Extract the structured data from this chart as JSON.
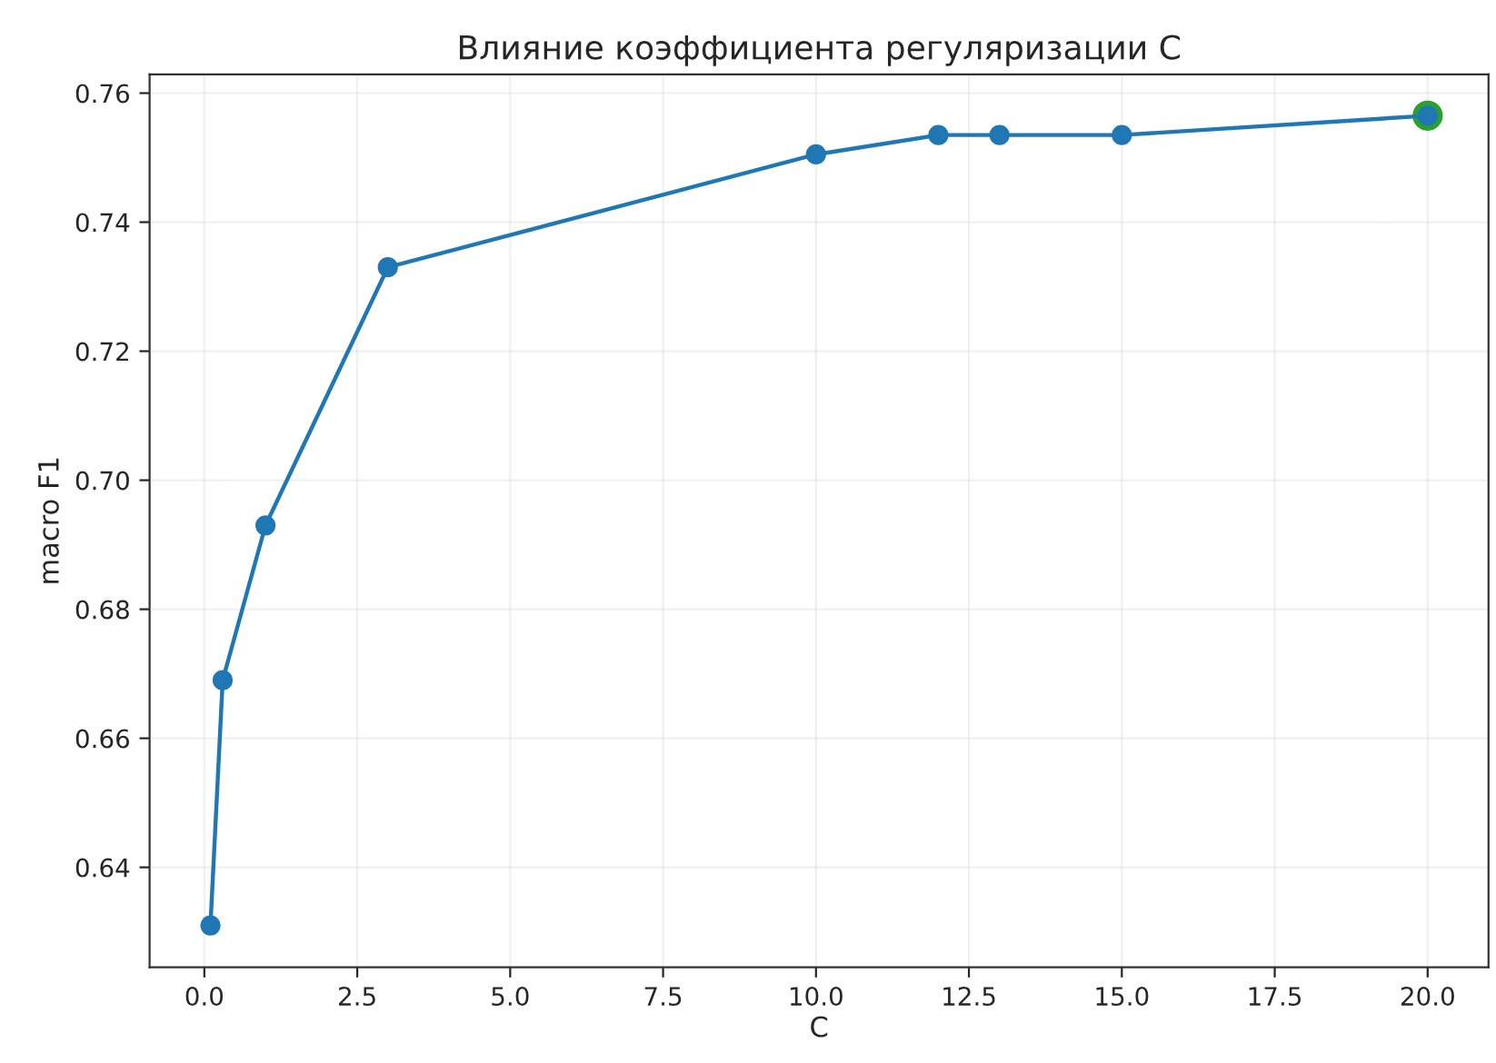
{
  "chart_data": {
    "type": "line",
    "title": "Влияние коэффициента регуляризации C",
    "xlabel": "C",
    "ylabel": "macro F1",
    "x": [
      0.1,
      0.3,
      1,
      3,
      10,
      12,
      13,
      15,
      20
    ],
    "series": [
      {
        "type": "scatter",
        "color": "#2ca02c",
        "x": [
          20
        ],
        "values": [
          0.7565
        ]
      },
      {
        "color": "#1f77b4",
        "values": [
          0.631,
          0.669,
          0.693,
          0.733,
          0.7505,
          0.7535,
          0.7535,
          0.7535,
          0.7565
        ]
      }
    ],
    "marker": "circle",
    "line_style": "solid",
    "xlim": [
      -0.895,
      20.995
    ],
    "xticks": [
      {
        "value": 0,
        "label": "0.0"
      },
      {
        "value": 2.5,
        "label": "2.5"
      },
      {
        "value": 5,
        "label": "5.0"
      },
      {
        "value": 7.5,
        "label": "7.5"
      },
      {
        "value": 10,
        "label": "10.0"
      },
      {
        "value": 12.5,
        "label": "12.5"
      },
      {
        "value": 15,
        "label": "15.0"
      },
      {
        "value": 17.5,
        "label": "17.5"
      },
      {
        "value": 20,
        "label": "20.0"
      }
    ],
    "ylim": [
      0.6245,
      0.7629
    ],
    "yticks": [
      {
        "value": 0.64,
        "label": "0.64"
      },
      {
        "value": 0.66,
        "label": "0.66"
      },
      {
        "value": 0.68,
        "label": "0.68"
      },
      {
        "value": 0.7,
        "label": "0.70"
      },
      {
        "value": 0.72,
        "label": "0.72"
      },
      {
        "value": 0.74,
        "label": "0.74"
      },
      {
        "value": 0.76,
        "label": "0.76"
      }
    ],
    "grid": true
  }
}
